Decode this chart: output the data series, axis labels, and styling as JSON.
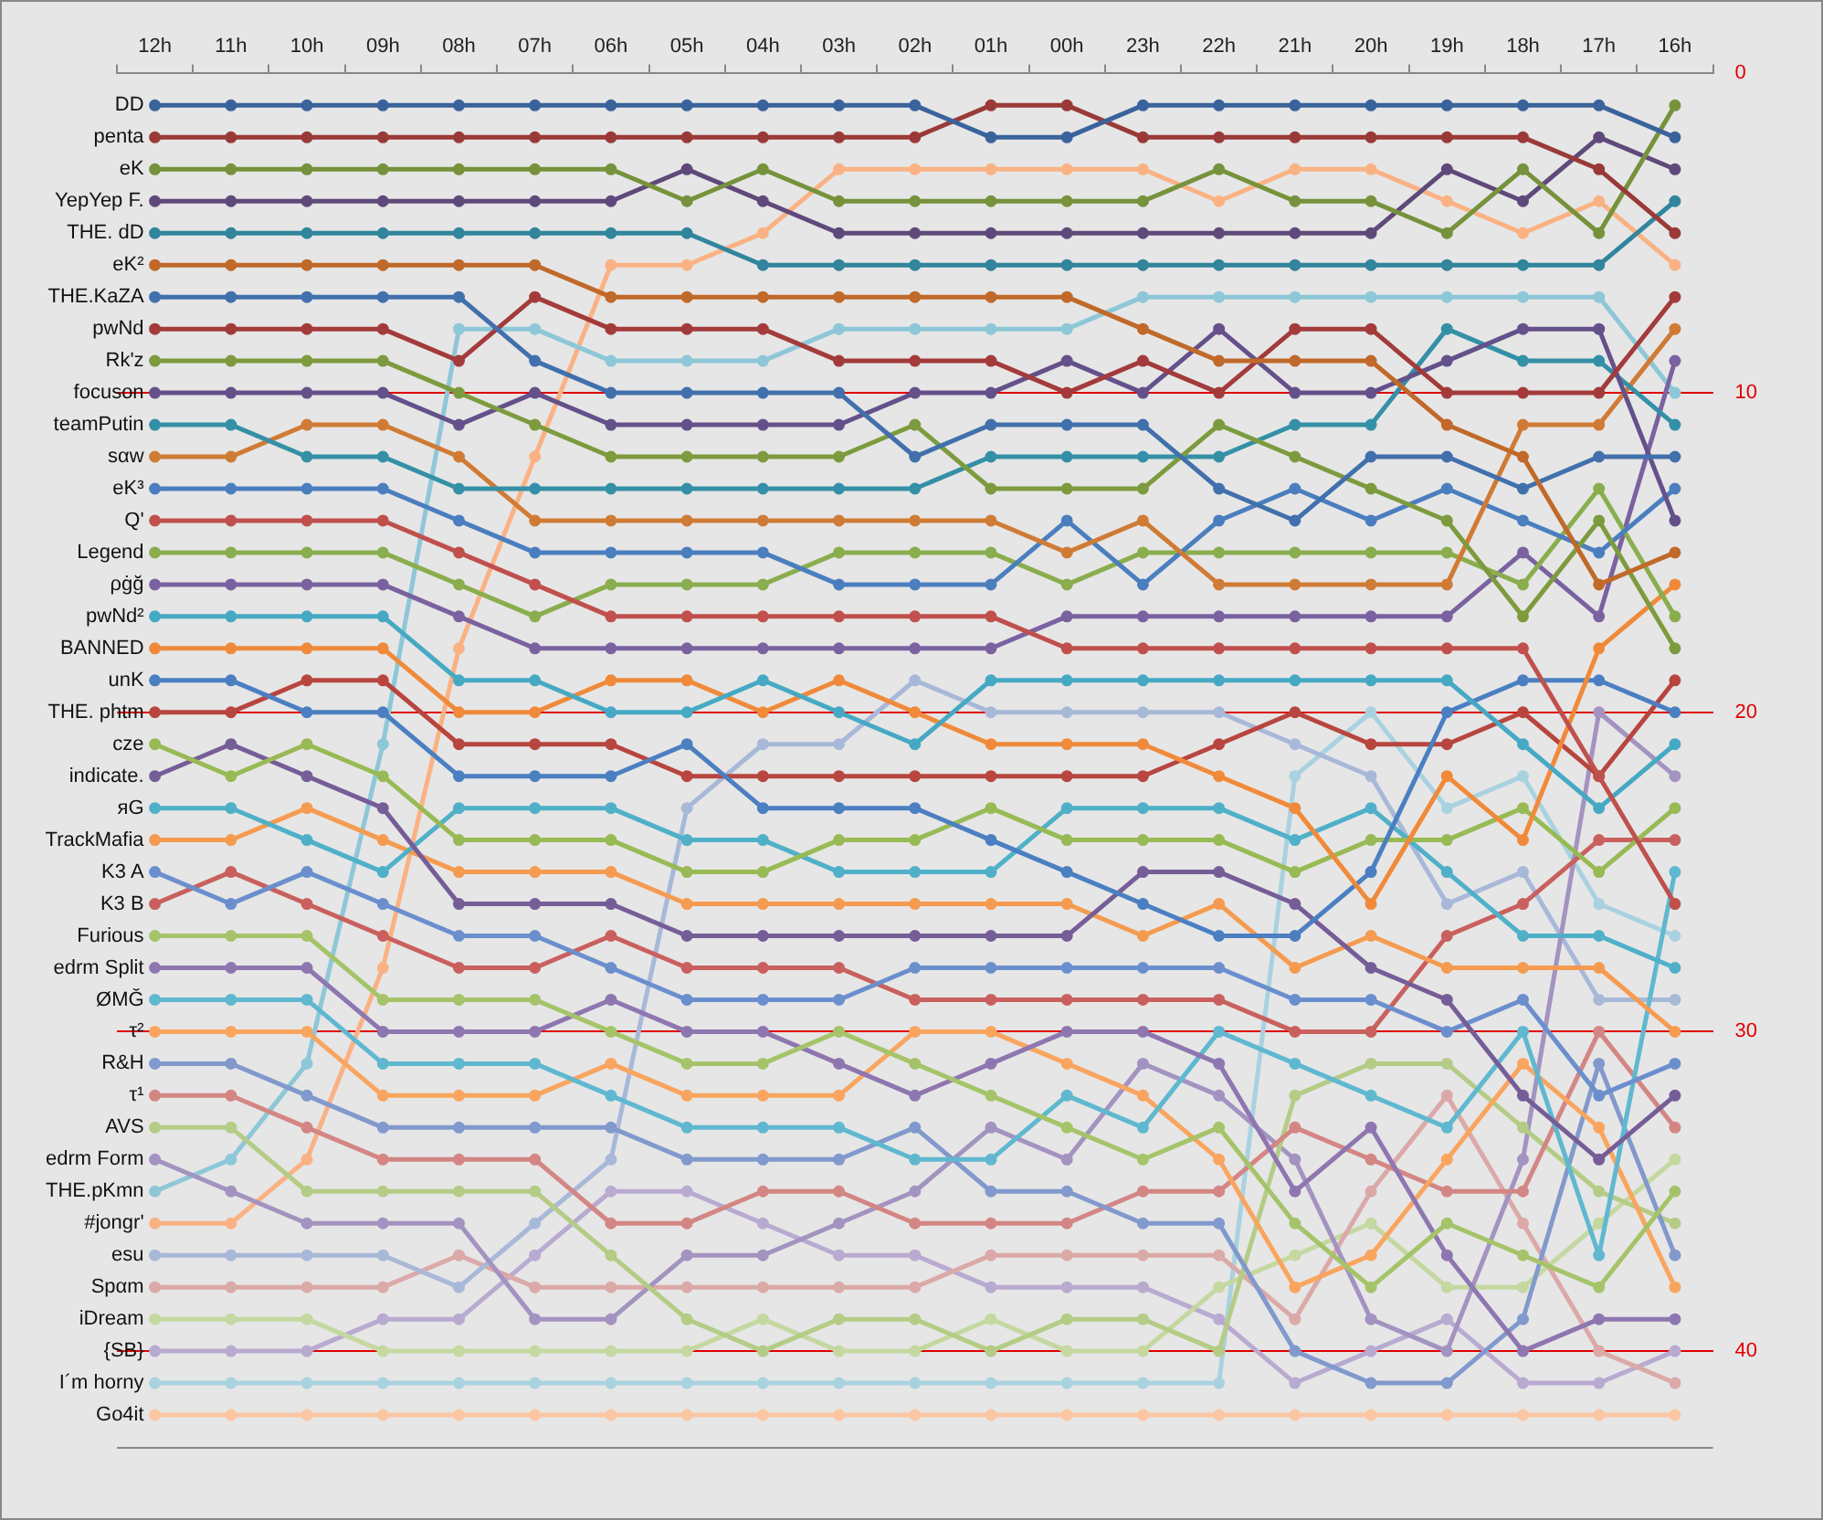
{
  "chart_data": {
    "type": "line",
    "categories": [
      "12h",
      "11h",
      "10h",
      "09h",
      "08h",
      "07h",
      "06h",
      "05h",
      "04h",
      "03h",
      "02h",
      "01h",
      "00h",
      "23h",
      "22h",
      "21h",
      "20h",
      "19h",
      "18h",
      "17h",
      "16h"
    ],
    "ylim": [
      43,
      0
    ],
    "yticks": [
      0,
      10,
      20,
      30,
      40
    ],
    "grid": "y",
    "legend": false,
    "marker": "circle",
    "line_style": "solid",
    "series": [
      {
        "name": "DD",
        "color": "#3a639c",
        "values": [
          1,
          1,
          1,
          1,
          1,
          1,
          1,
          1,
          1,
          1,
          1,
          2,
          2,
          1,
          1,
          1,
          1,
          1,
          1,
          1,
          2
        ]
      },
      {
        "name": "penta",
        "color": "#9a3a38",
        "values": [
          2,
          2,
          2,
          2,
          2,
          2,
          2,
          2,
          2,
          2,
          2,
          1,
          1,
          2,
          2,
          2,
          2,
          2,
          2,
          3,
          5
        ]
      },
      {
        "name": "eK",
        "color": "#76923c",
        "values": [
          3,
          3,
          3,
          3,
          3,
          3,
          3,
          4,
          3,
          4,
          4,
          4,
          4,
          4,
          3,
          4,
          4,
          5,
          3,
          5,
          1
        ]
      },
      {
        "name": "YepYep F.",
        "color": "#5f497a",
        "values": [
          4,
          4,
          4,
          4,
          4,
          4,
          4,
          3,
          4,
          5,
          5,
          5,
          5,
          5,
          5,
          5,
          5,
          3,
          4,
          2,
          3
        ]
      },
      {
        "name": "THE. dD",
        "color": "#31859c",
        "values": [
          5,
          5,
          5,
          5,
          5,
          5,
          5,
          5,
          6,
          6,
          6,
          6,
          6,
          6,
          6,
          6,
          6,
          6,
          6,
          6,
          4
        ]
      },
      {
        "name": "eK²",
        "color": "#c0692a",
        "values": [
          6,
          6,
          6,
          6,
          6,
          6,
          7,
          7,
          7,
          7,
          7,
          7,
          7,
          8,
          9,
          9,
          9,
          11,
          12,
          16,
          15
        ]
      },
      {
        "name": "THE.KaZA",
        "color": "#4170ac",
        "values": [
          7,
          7,
          7,
          7,
          7,
          9,
          10,
          10,
          10,
          10,
          12,
          11,
          11,
          11,
          13,
          14,
          12,
          12,
          13,
          12,
          12
        ]
      },
      {
        "name": "pwNd",
        "color": "#a33b3b",
        "values": [
          8,
          8,
          8,
          8,
          9,
          7,
          8,
          8,
          8,
          9,
          9,
          9,
          10,
          9,
          10,
          8,
          8,
          10,
          10,
          10,
          7
        ]
      },
      {
        "name": "Rk'z",
        "color": "#7d9b3e",
        "values": [
          9,
          9,
          9,
          9,
          10,
          11,
          12,
          12,
          12,
          12,
          11,
          13,
          13,
          13,
          11,
          12,
          13,
          14,
          17,
          14,
          18
        ]
      },
      {
        "name": "focuson",
        "color": "#64508a",
        "values": [
          10,
          10,
          10,
          10,
          11,
          10,
          11,
          11,
          11,
          11,
          10,
          10,
          9,
          10,
          8,
          10,
          10,
          9,
          8,
          8,
          14
        ]
      },
      {
        "name": "teamPutin",
        "color": "#3490a6",
        "values": [
          11,
          11,
          12,
          12,
          13,
          13,
          13,
          13,
          13,
          13,
          13,
          12,
          12,
          12,
          12,
          11,
          11,
          8,
          9,
          9,
          11
        ]
      },
      {
        "name": "sαw",
        "color": "#d07b35",
        "values": [
          12,
          12,
          11,
          11,
          12,
          14,
          14,
          14,
          14,
          14,
          14,
          14,
          15,
          14,
          16,
          16,
          16,
          16,
          11,
          11,
          8
        ]
      },
      {
        "name": "eK³",
        "color": "#4a7ebf",
        "values": [
          13,
          13,
          13,
          13,
          14,
          15,
          15,
          15,
          15,
          16,
          16,
          16,
          14,
          16,
          14,
          13,
          14,
          13,
          14,
          15,
          13
        ]
      },
      {
        "name": "Q'",
        "color": "#c0504d",
        "values": [
          14,
          14,
          14,
          14,
          15,
          16,
          17,
          17,
          17,
          17,
          17,
          17,
          18,
          18,
          18,
          18,
          18,
          18,
          18,
          22,
          26
        ]
      },
      {
        "name": "Legend",
        "color": "#8aad4e",
        "values": [
          15,
          15,
          15,
          15,
          16,
          17,
          16,
          16,
          16,
          15,
          15,
          15,
          16,
          15,
          15,
          15,
          15,
          15,
          16,
          13,
          17
        ]
      },
      {
        "name": "ρġğ",
        "color": "#7a62a0",
        "values": [
          16,
          16,
          16,
          16,
          17,
          18,
          18,
          18,
          18,
          18,
          18,
          18,
          17,
          17,
          17,
          17,
          17,
          17,
          15,
          17,
          9
        ]
      },
      {
        "name": "pwNd²",
        "color": "#46a9c4",
        "values": [
          17,
          17,
          17,
          17,
          19,
          19,
          20,
          20,
          19,
          20,
          21,
          19,
          19,
          19,
          19,
          19,
          19,
          19,
          21,
          23,
          21
        ]
      },
      {
        "name": "BANNED",
        "color": "#f08a3a",
        "values": [
          18,
          18,
          18,
          18,
          20,
          20,
          19,
          19,
          20,
          19,
          20,
          21,
          21,
          21,
          22,
          23,
          26,
          22,
          24,
          18,
          16
        ]
      },
      {
        "name": "unK",
        "color": "#4b7fc2",
        "values": [
          19,
          19,
          20,
          20,
          22,
          22,
          22,
          21,
          23,
          23,
          23,
          24,
          25,
          26,
          27,
          27,
          25,
          20,
          19,
          19,
          20
        ]
      },
      {
        "name": "THE. phtm",
        "color": "#b8453f",
        "values": [
          20,
          20,
          19,
          19,
          21,
          21,
          21,
          22,
          22,
          22,
          22,
          22,
          22,
          22,
          21,
          20,
          21,
          21,
          20,
          22,
          19
        ]
      },
      {
        "name": "cze",
        "color": "#98ba55",
        "values": [
          21,
          22,
          21,
          22,
          24,
          24,
          24,
          25,
          25,
          24,
          24,
          23,
          24,
          24,
          24,
          25,
          24,
          24,
          23,
          25,
          23
        ]
      },
      {
        "name": "indicate.",
        "color": "#755d98",
        "values": [
          22,
          21,
          22,
          23,
          26,
          26,
          26,
          27,
          27,
          27,
          27,
          27,
          27,
          25,
          25,
          26,
          28,
          29,
          32,
          34,
          32
        ]
      },
      {
        "name": "яG",
        "color": "#4fb0c8",
        "values": [
          23,
          23,
          24,
          25,
          23,
          23,
          23,
          24,
          24,
          25,
          25,
          25,
          23,
          23,
          23,
          24,
          23,
          25,
          27,
          27,
          28
        ]
      },
      {
        "name": "TrackMafia",
        "color": "#f59b50",
        "values": [
          24,
          24,
          23,
          24,
          25,
          25,
          25,
          26,
          26,
          26,
          26,
          26,
          26,
          27,
          26,
          28,
          27,
          28,
          28,
          28,
          30
        ]
      },
      {
        "name": "K3 A",
        "color": "#6b8fcd",
        "values": [
          25,
          26,
          25,
          26,
          27,
          27,
          28,
          29,
          29,
          29,
          28,
          28,
          28,
          28,
          28,
          29,
          29,
          30,
          29,
          32,
          31
        ]
      },
      {
        "name": "K3 B",
        "color": "#c9605d",
        "values": [
          26,
          25,
          26,
          27,
          28,
          28,
          27,
          28,
          28,
          28,
          29,
          29,
          29,
          29,
          29,
          30,
          30,
          27,
          26,
          24,
          24
        ]
      },
      {
        "name": "Furious",
        "color": "#a5c46a",
        "values": [
          27,
          27,
          27,
          29,
          29,
          29,
          30,
          31,
          31,
          30,
          31,
          32,
          33,
          34,
          33,
          36,
          38,
          36,
          37,
          38,
          35
        ]
      },
      {
        "name": "edrm Split",
        "color": "#8e76b0",
        "values": [
          28,
          28,
          28,
          30,
          30,
          30,
          29,
          30,
          30,
          31,
          32,
          31,
          30,
          30,
          31,
          35,
          33,
          37,
          40,
          39,
          39
        ]
      },
      {
        "name": "ØMĞ",
        "color": "#5fb8d0",
        "values": [
          29,
          29,
          29,
          31,
          31,
          31,
          32,
          33,
          33,
          33,
          34,
          34,
          32,
          33,
          30,
          31,
          32,
          33,
          30,
          37,
          25
        ]
      },
      {
        "name": "τ²",
        "color": "#f9a55f",
        "values": [
          30,
          30,
          30,
          32,
          32,
          32,
          31,
          32,
          32,
          32,
          30,
          30,
          31,
          32,
          34,
          38,
          37,
          34,
          31,
          33,
          38
        ]
      },
      {
        "name": "R&H",
        "color": "#8199cc",
        "values": [
          31,
          31,
          32,
          33,
          33,
          33,
          33,
          34,
          34,
          34,
          33,
          35,
          35,
          36,
          36,
          40,
          41,
          41,
          39,
          31,
          37
        ]
      },
      {
        "name": "τ¹",
        "color": "#d38684",
        "values": [
          32,
          32,
          33,
          34,
          34,
          34,
          36,
          36,
          35,
          35,
          36,
          36,
          36,
          35,
          35,
          33,
          34,
          35,
          35,
          30,
          33
        ]
      },
      {
        "name": "AVS",
        "color": "#b4cc86",
        "values": [
          33,
          33,
          35,
          35,
          35,
          35,
          37,
          39,
          40,
          39,
          39,
          40,
          39,
          39,
          40,
          32,
          31,
          31,
          33,
          35,
          36
        ]
      },
      {
        "name": "edrm Form",
        "color": "#a393c0",
        "values": [
          34,
          35,
          36,
          36,
          36,
          39,
          39,
          37,
          37,
          36,
          35,
          33,
          34,
          31,
          32,
          34,
          39,
          40,
          34,
          20,
          22
        ]
      },
      {
        "name": "THE.pKmn",
        "color": "#8dc7d8",
        "values": [
          35,
          34,
          31,
          21,
          8,
          8,
          9,
          9,
          9,
          8,
          8,
          8,
          8,
          7,
          7,
          7,
          7,
          7,
          7,
          7,
          10
        ]
      },
      {
        "name": "#jongr'",
        "color": "#fab284",
        "values": [
          36,
          36,
          34,
          28,
          18,
          12,
          6,
          6,
          5,
          3,
          3,
          3,
          3,
          3,
          4,
          3,
          3,
          4,
          5,
          4,
          6
        ]
      },
      {
        "name": "esu",
        "color": "#a8b8d8",
        "values": [
          37,
          37,
          37,
          37,
          38,
          36,
          34,
          23,
          21,
          21,
          19,
          20,
          20,
          20,
          20,
          21,
          22,
          26,
          25,
          29,
          29
        ]
      },
      {
        "name": "Spαm",
        "color": "#dba9a8",
        "values": [
          38,
          38,
          38,
          38,
          37,
          38,
          38,
          38,
          38,
          38,
          38,
          37,
          37,
          37,
          37,
          39,
          35,
          32,
          36,
          40,
          41
        ]
      },
      {
        "name": "iDream",
        "color": "#c4d8a0",
        "values": [
          39,
          39,
          39,
          40,
          40,
          40,
          40,
          40,
          39,
          40,
          40,
          39,
          40,
          40,
          38,
          37,
          36,
          38,
          38,
          36,
          34
        ]
      },
      {
        "name": "{SB}",
        "color": "#b8aad0",
        "values": [
          40,
          40,
          40,
          39,
          39,
          37,
          35,
          35,
          36,
          37,
          37,
          38,
          38,
          38,
          39,
          41,
          40,
          39,
          41,
          41,
          40
        ]
      },
      {
        "name": "I´m horny",
        "color": "#a9d2e0",
        "values": [
          41,
          41,
          41,
          41,
          41,
          41,
          41,
          41,
          41,
          41,
          41,
          41,
          41,
          41,
          41,
          22,
          20,
          23,
          22,
          26,
          27
        ]
      },
      {
        "name": "Go4it",
        "color": "#fbc6a2",
        "values": [
          42,
          42,
          42,
          42,
          42,
          42,
          42,
          42,
          42,
          42,
          42,
          42,
          42,
          42,
          42,
          42,
          42,
          42,
          42,
          42,
          42
        ]
      }
    ]
  }
}
